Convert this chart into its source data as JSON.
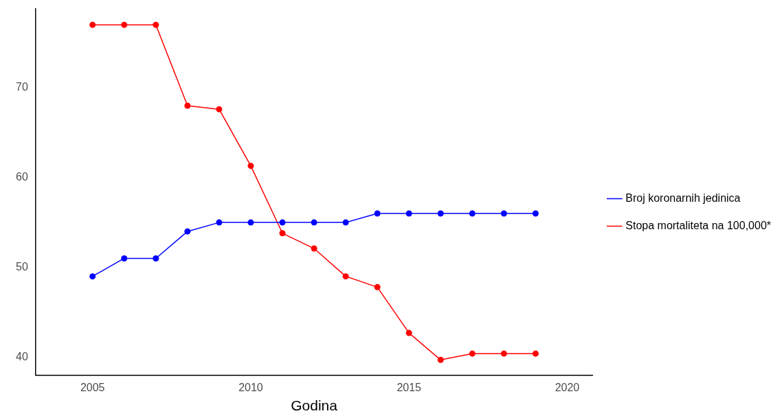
{
  "chart_data": {
    "type": "line",
    "xlabel": "Godina",
    "x": [
      2005,
      2006,
      2007,
      2008,
      2009,
      2010,
      2011,
      2012,
      2013,
      2014,
      2015,
      2016,
      2017,
      2018,
      2019
    ],
    "series": [
      {
        "name": "Broj koronarnih jedinica",
        "color": "#0000ff",
        "values": [
          49,
          51,
          51,
          54,
          55,
          55,
          55,
          55,
          55,
          56,
          56,
          56,
          56,
          56,
          56
        ]
      },
      {
        "name": "Stopa mortaliteta na 100,000*",
        "color": "#ff0000",
        "values": [
          77,
          77,
          77,
          68,
          67.6,
          61.3,
          53.8,
          52.1,
          49,
          47.8,
          42.7,
          39.7,
          40.4,
          40.4,
          40.4
        ]
      }
    ],
    "xlim": [
      2003.2,
      2020.8
    ],
    "xticks": [
      2005,
      2010,
      2015,
      2020
    ],
    "ylim": [
      38,
      78.8
    ],
    "yticks": [
      40,
      50,
      60,
      70
    ],
    "grid": false,
    "legend": "right",
    "marker": "circle",
    "line_style": "solid"
  }
}
